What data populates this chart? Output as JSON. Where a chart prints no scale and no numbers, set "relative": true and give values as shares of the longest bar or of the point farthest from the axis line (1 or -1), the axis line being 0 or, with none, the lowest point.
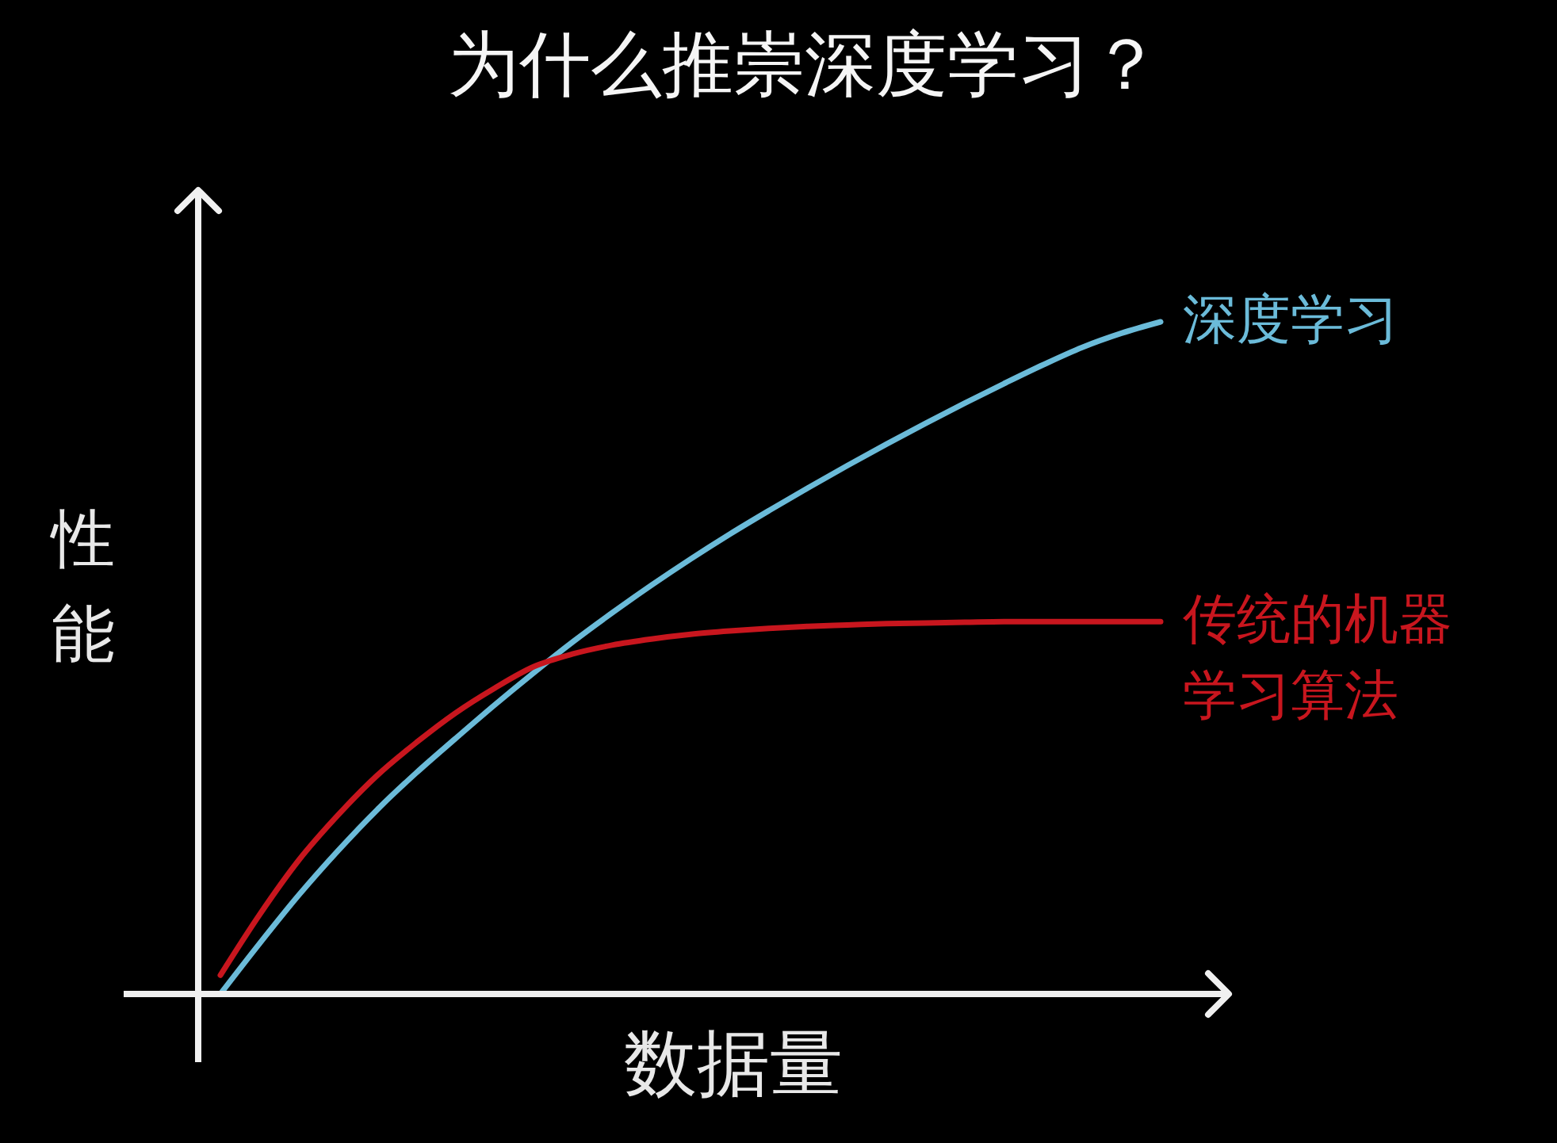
{
  "chart_data": {
    "type": "line",
    "title": "为什么推崇深度学习？",
    "xlabel": "数据量",
    "ylabel": "性能",
    "relative": true,
    "categories": [
      null,
      null,
      null,
      null,
      null,
      null,
      null,
      null,
      null,
      null,
      null,
      null,
      null,
      null,
      null,
      null,
      null,
      null,
      null,
      null,
      null,
      null,
      null,
      null,
      null
    ],
    "series": [
      {
        "name": "深度学习",
        "color": "#6bbbd9",
        "values": [
          0,
          0.075,
          0.147,
          0.213,
          0.274,
          0.329,
          0.38,
          0.43,
          0.478,
          0.524,
          0.567,
          0.608,
          0.647,
          0.684,
          0.719,
          0.753,
          0.786,
          0.818,
          0.849,
          0.879,
          0.908,
          0.936,
          0.962,
          0.983,
          1
        ]
      },
      {
        "name": "传统的机器学习算法",
        "color": "#c8161e",
        "values": [
          0.028,
          0.118,
          0.199,
          0.266,
          0.325,
          0.374,
          0.418,
          0.455,
          0.487,
          0.506,
          0.519,
          0.528,
          0.535,
          0.54,
          0.544,
          0.547,
          0.549,
          0.551,
          0.552,
          0.553,
          0.554,
          0.554,
          0.554,
          0.554,
          0.554
        ]
      }
    ]
  }
}
